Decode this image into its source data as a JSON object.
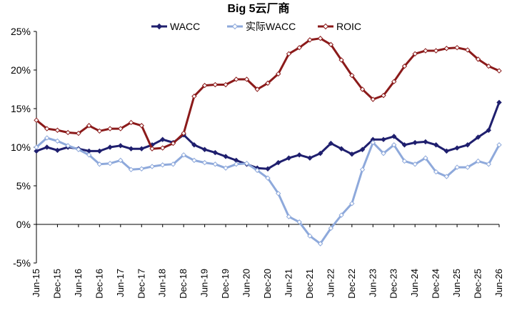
{
  "chart_data": {
    "type": "line",
    "title": "Big 5云厂商",
    "xlabel": "",
    "ylabel": "",
    "ylim": [
      -0.05,
      0.25
    ],
    "yticks": [
      "-5%",
      "0%",
      "5%",
      "10%",
      "15%",
      "20%",
      "25%"
    ],
    "grid": false,
    "legend": "top",
    "x_tick_labels": [
      "Jun-15",
      "Dec-15",
      "Jun-16",
      "Dec-16",
      "Jun-17",
      "Dec-17",
      "Jun-18",
      "Dec-18",
      "Jun-19",
      "Dec-19",
      "Jun-20",
      "Dec-20",
      "Jun-21",
      "Dec-21",
      "Jun-22",
      "Dec-22",
      "Jun-23",
      "Dec-23",
      "Jun-24",
      "Dec-24",
      "Jun-25",
      "Dec-25",
      "Jun-26"
    ],
    "x": [
      "Jun-15",
      "Sep-15",
      "Dec-15",
      "Mar-16",
      "Jun-16",
      "Sep-16",
      "Dec-16",
      "Mar-17",
      "Jun-17",
      "Sep-17",
      "Dec-17",
      "Mar-18",
      "Jun-18",
      "Sep-18",
      "Dec-18",
      "Mar-19",
      "Jun-19",
      "Sep-19",
      "Dec-19",
      "Mar-20",
      "Jun-20",
      "Sep-20",
      "Dec-20",
      "Mar-21",
      "Jun-21",
      "Sep-21",
      "Dec-21",
      "Mar-22",
      "Jun-22",
      "Sep-22",
      "Dec-22",
      "Mar-23",
      "Jun-23",
      "Sep-23",
      "Dec-23",
      "Mar-24",
      "Jun-24",
      "Sep-24",
      "Dec-24",
      "Mar-25",
      "Jun-25",
      "Sep-25",
      "Dec-25",
      "Mar-26",
      "Jun-26"
    ],
    "series": [
      {
        "name": "WACC",
        "color": "#1f1f6e",
        "marker_fill": "#1f1f6e",
        "values": [
          0.095,
          0.1,
          0.096,
          0.1,
          0.098,
          0.095,
          0.095,
          0.1,
          0.102,
          0.098,
          0.098,
          0.103,
          0.11,
          0.106,
          0.116,
          0.103,
          0.097,
          0.093,
          0.088,
          0.083,
          0.078,
          0.073,
          0.072,
          0.08,
          0.086,
          0.09,
          0.086,
          0.092,
          0.105,
          0.098,
          0.091,
          0.097,
          0.11,
          0.11,
          0.114,
          0.103,
          0.106,
          0.107,
          0.103,
          0.095,
          0.099,
          0.103,
          0.113,
          0.122,
          0.158
        ]
      },
      {
        "name": "实际WACC",
        "color": "#8ea9db",
        "marker_fill": "#ffffff",
        "values": [
          0.1,
          0.112,
          0.108,
          0.102,
          0.097,
          0.09,
          0.078,
          0.079,
          0.083,
          0.071,
          0.072,
          0.075,
          0.077,
          0.078,
          0.09,
          0.083,
          0.08,
          0.078,
          0.073,
          0.078,
          0.079,
          0.07,
          0.06,
          0.04,
          0.01,
          0.003,
          -0.015,
          -0.025,
          -0.005,
          0.012,
          0.027,
          0.071,
          0.106,
          0.092,
          0.103,
          0.082,
          0.078,
          0.086,
          0.068,
          0.062,
          0.074,
          0.074,
          0.082,
          0.078,
          0.103
        ]
      },
      {
        "name": "ROIC",
        "color": "#8b1a1a",
        "marker_fill": "#ffffff",
        "values": [
          0.135,
          0.124,
          0.122,
          0.119,
          0.118,
          0.128,
          0.121,
          0.124,
          0.124,
          0.132,
          0.128,
          0.098,
          0.099,
          0.105,
          0.118,
          0.166,
          0.18,
          0.181,
          0.181,
          0.188,
          0.188,
          0.175,
          0.183,
          0.195,
          0.221,
          0.229,
          0.239,
          0.241,
          0.233,
          0.213,
          0.193,
          0.175,
          0.162,
          0.167,
          0.185,
          0.205,
          0.221,
          0.225,
          0.225,
          0.228,
          0.229,
          0.226,
          0.214,
          0.205,
          0.199
        ]
      }
    ]
  }
}
